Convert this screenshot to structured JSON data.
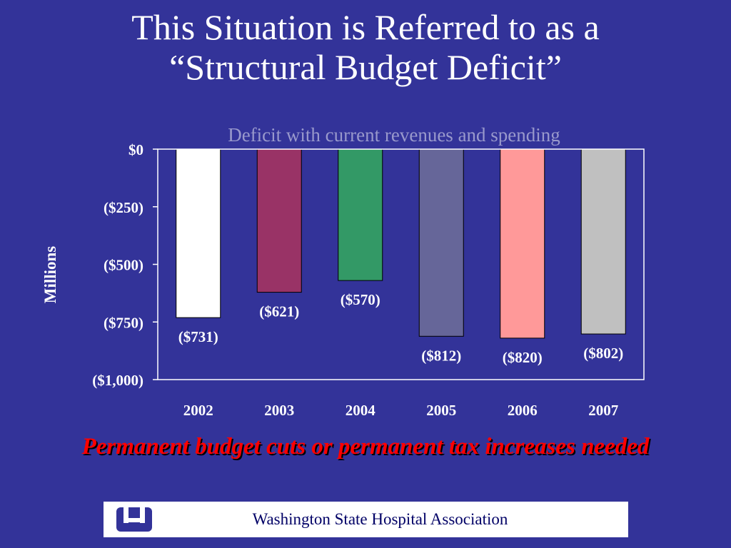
{
  "title_line1": "This Situation is Referred to as a",
  "title_line2": "“Structural Budget Deficit”",
  "caption": "Permanent budget cuts or permanent tax increases needed",
  "footer_text": "Washington State Hospital Association",
  "chart_data": {
    "type": "bar",
    "subtitle": "Deficit with current revenues and spending",
    "ylabel": "Millions",
    "xlabel": "",
    "categories": [
      "2002",
      "2003",
      "2004",
      "2005",
      "2006",
      "2007"
    ],
    "values": [
      -731,
      -621,
      -570,
      -812,
      -820,
      -802
    ],
    "data_labels": [
      "($731)",
      "($621)",
      "($570)",
      "($812)",
      "($820)",
      "($802)"
    ],
    "bar_colors": [
      "#ffffff",
      "#993366",
      "#339966",
      "#666699",
      "#ff9999",
      "#c0c0c0"
    ],
    "ylim": [
      -1000,
      0
    ],
    "yticks": [
      0,
      -250,
      -500,
      -750,
      -1000
    ],
    "ytick_labels": [
      "$0",
      "($250)",
      "($500)",
      "($750)",
      "($1,000)"
    ],
    "grid": false,
    "legend": "none"
  },
  "colors": {
    "background": "#333399",
    "title": "#ffffff",
    "subtitle": "#9999cc",
    "caption": "#ff0000",
    "footer_text": "#000066",
    "logo": "#333399"
  }
}
